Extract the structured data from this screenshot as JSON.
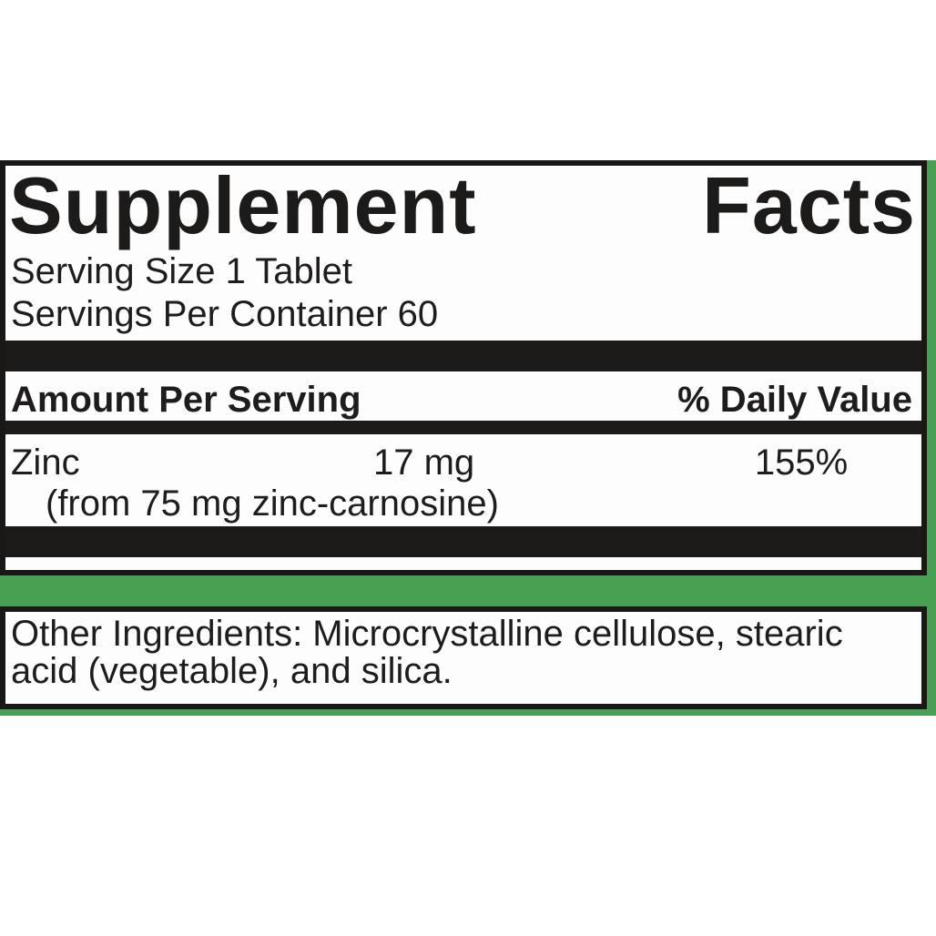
{
  "label": {
    "title": {
      "left": "Supplement",
      "right": "Facts"
    },
    "serving_size": "Serving Size 1 Tablet",
    "servings_per_container": "Servings Per Container 60",
    "column_headers": {
      "amount": "Amount Per Serving",
      "daily_value": "% Daily Value"
    },
    "nutrients": [
      {
        "name": "Zinc",
        "amount": "17 mg",
        "daily_value": "155%",
        "source_note": "(from 75 mg zinc-carnosine)"
      }
    ],
    "other_ingredients": "Other Ingredients: Microcrystalline cellulose, stearic acid (vegetable), and silica.",
    "colors": {
      "accent_green": "#48a052",
      "ink_black": "#1d1a1a"
    }
  }
}
